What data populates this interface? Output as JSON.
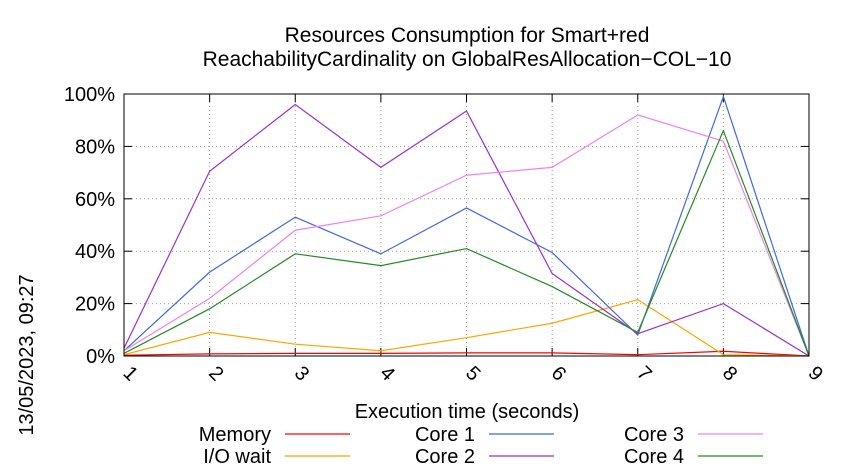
{
  "chart_data": {
    "type": "line",
    "title_line1": "Resources Consumption for Smart+red",
    "title_line2": "ReachabilityCardinality on GlobalResAllocation−COL−10",
    "xlabel": "Execution time (seconds)",
    "ylabel": "",
    "side_label": "13/05/2023, 09:27",
    "x": [
      1,
      2,
      3,
      4,
      5,
      6,
      7,
      8,
      9
    ],
    "xlim": [
      1,
      9
    ],
    "ylim": [
      0,
      100
    ],
    "y_ticks": [
      "0%",
      "20%",
      "40%",
      "60%",
      "80%",
      "100%"
    ],
    "x_ticks": [
      "1",
      "2",
      "3",
      "4",
      "5",
      "6",
      "7",
      "8",
      "9"
    ],
    "grid": true,
    "legend_position": "bottom",
    "series": [
      {
        "name": "Memory",
        "color": "#ff0000",
        "values": [
          0.3,
          0.8,
          1.0,
          1.0,
          1.2,
          1.2,
          0.5,
          1.8,
          0.0
        ]
      },
      {
        "name": "I/O wait",
        "color": "#ffa500",
        "values": [
          0.5,
          9.0,
          4.5,
          2.0,
          7.0,
          12.5,
          21.5,
          0.5,
          0.0
        ]
      },
      {
        "name": "Core 1",
        "color": "#4169e1",
        "values": [
          2.0,
          32.0,
          53.0,
          39.0,
          56.5,
          39.5,
          8.0,
          99.0,
          0.0
        ]
      },
      {
        "name": "Core 2",
        "color": "#9932cc",
        "values": [
          3.0,
          70.5,
          96.0,
          72.0,
          93.5,
          31.5,
          8.5,
          20.0,
          0.0
        ]
      },
      {
        "name": "Core 3",
        "color": "#ee82ee",
        "values": [
          2.0,
          22.0,
          48.0,
          53.5,
          69.0,
          72.0,
          92.0,
          82.0,
          0.0
        ]
      },
      {
        "name": "Core 4",
        "color": "#228b22",
        "values": [
          1.0,
          18.0,
          39.0,
          34.5,
          41.0,
          26.5,
          9.0,
          86.0,
          0.0
        ]
      }
    ]
  }
}
